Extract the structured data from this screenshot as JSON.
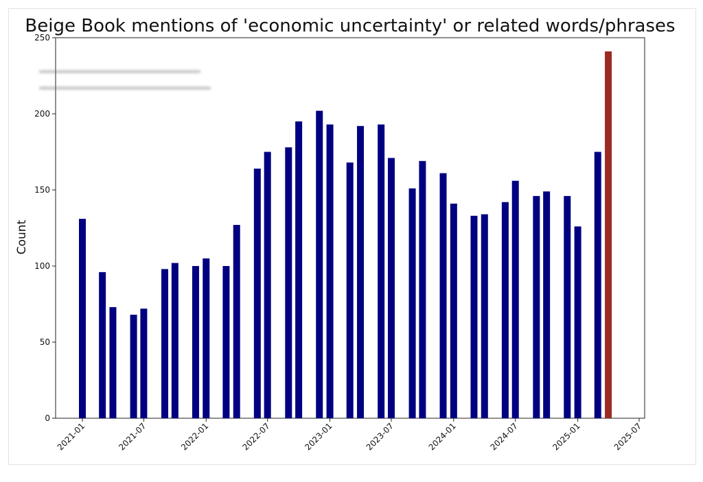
{
  "chart_data": {
    "type": "bar",
    "title": "Beige Book mentions of 'economic uncertainty' or related words/phrases",
    "ylabel": "Count",
    "xlabel": "",
    "ylim": [
      0,
      250
    ],
    "yticks": [
      0,
      50,
      100,
      150,
      200,
      250
    ],
    "xticks": [
      "2021-01",
      "2021-07",
      "2022-01",
      "2022-07",
      "2023-01",
      "2023-07",
      "2024-01",
      "2024-07",
      "2025-01",
      "2025-07"
    ],
    "grid": false,
    "categories": [
      "2021-01",
      "2021-03",
      "2021-04",
      "2021-06",
      "2021-07",
      "2021-09",
      "2021-10",
      "2021-12",
      "2022-01",
      "2022-03",
      "2022-04",
      "2022-06",
      "2022-07",
      "2022-09",
      "2022-10",
      "2022-12",
      "2023-01",
      "2023-03",
      "2023-04",
      "2023-06",
      "2023-07",
      "2023-09",
      "2023-10",
      "2023-12",
      "2024-01",
      "2024-03",
      "2024-04",
      "2024-06",
      "2024-07",
      "2024-09",
      "2024-10",
      "2024-12",
      "2025-01",
      "2025-03",
      "2025-04"
    ],
    "values": [
      131,
      96,
      73,
      68,
      72,
      98,
      102,
      100,
      105,
      100,
      127,
      164,
      175,
      178,
      195,
      202,
      193,
      168,
      192,
      193,
      171,
      151,
      169,
      161,
      141,
      133,
      134,
      142,
      156,
      146,
      149,
      146,
      126,
      175,
      241
    ],
    "colors": {
      "default": "#000080",
      "highlight": "#9b2a22"
    },
    "highlight_index": 34
  }
}
